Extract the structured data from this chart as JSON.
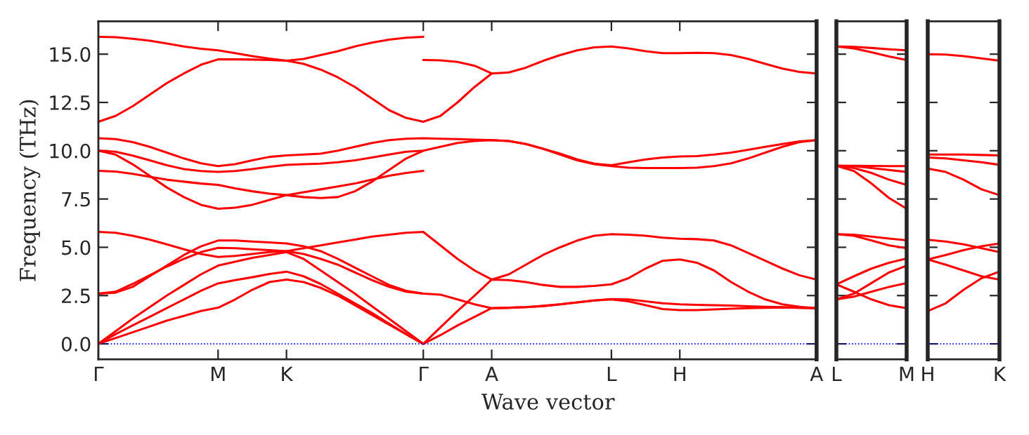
{
  "chart_data": [
    {
      "type": "line",
      "xlabel": "Wave vector",
      "ylabel": "Frequency (THz)",
      "ylim": [
        -0.8,
        16.7
      ],
      "categories": [
        "Γ",
        null,
        null,
        null,
        null,
        null,
        null,
        "M",
        null,
        null,
        null,
        "K",
        null,
        null,
        null,
        null,
        null,
        null,
        null,
        "Γ",
        null,
        null,
        null,
        "A",
        null,
        null,
        null,
        null,
        null,
        null,
        "L",
        null,
        null,
        null,
        "H",
        null,
        null,
        null,
        null,
        null,
        null,
        null,
        "A"
      ],
      "yticks": [
        {
          "value": 0,
          "label": "0.0"
        },
        {
          "value": 2.5,
          "label": "2.5"
        },
        {
          "value": 5,
          "label": "5.0"
        },
        {
          "value": 7.5,
          "label": "7.5"
        },
        {
          "value": 10,
          "label": "10.0"
        },
        {
          "value": 12.5,
          "label": "12.5"
        },
        {
          "value": 15,
          "label": "15.0"
        }
      ],
      "ref_lines": [
        {
          "axis": "y",
          "value": 0,
          "color": "#0000ff",
          "line_style": "dotted"
        }
      ],
      "series": [
        {
          "color": "#ff0000",
          "values": [
            0,
            0.3,
            0.6,
            0.9,
            1.2,
            1.45,
            1.7,
            1.87,
            2.3,
            2.8,
            3.2,
            3.33,
            3.2,
            2.9,
            2.5,
            2.0,
            1.5,
            1.0,
            0.5,
            0,
            0.45,
            0.95,
            1.4,
            1.85,
            1.87,
            1.9,
            1.95,
            2.05,
            2.15,
            2.25,
            2.3,
            2.2,
            2.0,
            1.8,
            1.75,
            1.75,
            1.78,
            1.82,
            1.85,
            1.87,
            1.88,
            1.87,
            1.85
          ]
        },
        {
          "color": "#ff0000",
          "values": [
            0,
            0.5,
            0.95,
            1.4,
            1.85,
            2.3,
            2.75,
            3.13,
            3.3,
            3.45,
            3.62,
            3.74,
            3.5,
            3.1,
            2.6,
            2.1,
            1.6,
            1.05,
            0.5,
            0,
            0.85,
            1.7,
            2.5,
            3.33,
            3.3,
            3.2,
            3.05,
            2.95,
            2.95,
            3.0,
            3.08,
            3.4,
            3.9,
            4.3,
            4.37,
            4.2,
            3.8,
            3.2,
            2.7,
            2.3,
            2.05,
            1.92,
            1.85
          ]
        },
        {
          "color": "#ff0000",
          "values": [
            0,
            0.65,
            1.3,
            1.9,
            2.5,
            3.05,
            3.6,
            4.05,
            4.25,
            4.45,
            4.6,
            4.75,
            4.4,
            3.8,
            3.2,
            2.6,
            1.95,
            1.3,
            0.65,
            0,
            null,
            null,
            null,
            null,
            null,
            null,
            null,
            null,
            null,
            null,
            null,
            null,
            null,
            null,
            null,
            null,
            null,
            null,
            null,
            null,
            null,
            null,
            null
          ]
        },
        {
          "color": "#ff0000",
          "values": [
            2.6,
            2.7,
            3.1,
            3.55,
            4.0,
            4.4,
            4.75,
            4.97,
            4.95,
            4.9,
            4.85,
            4.8,
            4.65,
            4.4,
            4.1,
            3.7,
            3.3,
            2.95,
            2.7,
            2.6,
            2.55,
            2.3,
            2.05,
            1.85,
            1.87,
            1.9,
            1.97,
            2.05,
            2.15,
            2.25,
            2.32,
            2.3,
            2.2,
            2.1,
            2.05,
            2.02,
            2.0,
            1.98,
            1.95,
            1.92,
            1.9,
            1.87,
            1.85
          ]
        },
        {
          "color": "#ff0000",
          "values": [
            2.6,
            2.65,
            2.95,
            3.5,
            4.05,
            4.6,
            5.05,
            5.35,
            5.35,
            5.3,
            5.25,
            5.2,
            5.05,
            4.8,
            4.4,
            3.95,
            3.5,
            3.05,
            2.75,
            2.6,
            null,
            null,
            null,
            null,
            null,
            null,
            null,
            null,
            null,
            null,
            null,
            null,
            null,
            null,
            null,
            null,
            null,
            null,
            null,
            null,
            null,
            null,
            null
          ]
        },
        {
          "color": "#ff0000",
          "values": [
            5.8,
            5.75,
            5.6,
            5.4,
            5.15,
            4.9,
            4.65,
            4.5,
            4.55,
            4.65,
            4.75,
            4.8,
            4.95,
            5.1,
            5.25,
            5.4,
            5.55,
            5.65,
            5.75,
            5.8,
            5.1,
            4.4,
            3.8,
            3.33,
            3.6,
            4.1,
            4.6,
            5.0,
            5.35,
            5.6,
            5.68,
            5.65,
            5.6,
            5.5,
            5.44,
            5.42,
            5.35,
            5.1,
            4.7,
            4.3,
            3.9,
            3.55,
            3.33
          ]
        },
        {
          "color": "#ff0000",
          "values": [
            8.96,
            8.92,
            8.8,
            8.65,
            8.5,
            8.4,
            8.3,
            8.23,
            8.05,
            7.9,
            7.78,
            7.7,
            7.6,
            7.55,
            7.6,
            7.9,
            8.4,
            9.0,
            9.6,
            10.0,
            null,
            null,
            null,
            null,
            null,
            null,
            null,
            null,
            null,
            null,
            null,
            null,
            null,
            null,
            null,
            null,
            null,
            null,
            null,
            null,
            null,
            null,
            null
          ]
        },
        {
          "color": "#ff0000",
          "values": [
            10.0,
            9.8,
            9.3,
            8.7,
            8.1,
            7.6,
            7.2,
            7.0,
            7.05,
            7.2,
            7.45,
            7.7,
            7.85,
            8.0,
            8.15,
            8.3,
            8.5,
            8.7,
            8.85,
            8.96,
            null,
            null,
            null,
            null,
            null,
            null,
            null,
            null,
            null,
            null,
            null,
            null,
            null,
            null,
            null,
            null,
            null,
            null,
            null,
            null,
            null,
            null,
            null
          ]
        },
        {
          "color": "#ff0000",
          "values": [
            10.0,
            9.95,
            9.75,
            9.5,
            9.25,
            9.05,
            8.95,
            8.9,
            8.95,
            9.05,
            9.17,
            9.27,
            9.3,
            9.33,
            9.4,
            9.5,
            9.65,
            9.8,
            9.95,
            10.0,
            10.2,
            10.4,
            10.5,
            10.55,
            10.5,
            10.35,
            10.1,
            9.8,
            9.5,
            9.3,
            9.2,
            9.12,
            9.1,
            9.1,
            9.1,
            9.12,
            9.2,
            9.35,
            9.6,
            9.9,
            10.2,
            10.45,
            10.55
          ]
        },
        {
          "color": "#ff0000",
          "values": [
            10.65,
            10.6,
            10.45,
            10.2,
            9.9,
            9.6,
            9.35,
            9.2,
            9.3,
            9.5,
            9.68,
            9.76,
            9.8,
            9.85,
            10.0,
            10.2,
            10.4,
            10.55,
            10.62,
            10.65,
            10.62,
            10.6,
            10.57,
            10.55,
            10.5,
            10.35,
            10.1,
            9.85,
            9.55,
            9.33,
            9.25,
            9.4,
            9.55,
            9.65,
            9.7,
            9.72,
            9.8,
            9.9,
            10.05,
            10.2,
            10.35,
            10.48,
            10.55
          ]
        },
        {
          "color": "#ff0000",
          "values": [
            11.5,
            11.8,
            12.3,
            12.9,
            13.5,
            14.0,
            14.45,
            14.73,
            14.73,
            14.72,
            14.7,
            14.66,
            14.5,
            14.2,
            13.8,
            13.3,
            12.7,
            12.1,
            11.7,
            11.5,
            11.8,
            12.5,
            13.3,
            14.0,
            14.05,
            14.3,
            14.65,
            14.95,
            15.2,
            15.35,
            15.4,
            15.3,
            15.15,
            15.05,
            15.05,
            15.07,
            15.05,
            14.95,
            14.75,
            14.5,
            14.25,
            14.08,
            14.0
          ]
        },
        {
          "color": "#ff0000",
          "values": [
            15.9,
            15.88,
            15.8,
            15.7,
            15.55,
            15.4,
            15.28,
            15.2,
            15.05,
            14.9,
            14.77,
            14.66,
            14.75,
            14.95,
            15.15,
            15.4,
            15.6,
            15.75,
            15.85,
            15.9,
            null,
            null,
            null,
            null,
            null,
            null,
            null,
            null,
            null,
            null,
            null,
            null,
            null,
            null,
            null,
            null,
            null,
            null,
            null,
            null,
            null,
            null,
            null
          ]
        },
        {
          "color": "#ff0000",
          "values": [
            null,
            null,
            null,
            null,
            null,
            null,
            null,
            null,
            null,
            null,
            null,
            null,
            null,
            null,
            null,
            null,
            null,
            null,
            null,
            14.7,
            14.68,
            14.6,
            14.4,
            14.0,
            null,
            null,
            null,
            null,
            null,
            null,
            null,
            null,
            null,
            null,
            null,
            null,
            null,
            null,
            null,
            null,
            null,
            null,
            null
          ]
        }
      ]
    },
    {
      "type": "line",
      "ylim": [
        -0.8,
        16.7
      ],
      "tick_labels": "x",
      "categories": [
        "L",
        null,
        null,
        null,
        "M"
      ],
      "yticks": [
        {
          "value": 0,
          "label": null
        },
        {
          "value": 2.5,
          "label": null
        },
        {
          "value": 5,
          "label": null
        },
        {
          "value": 7.5,
          "label": null
        },
        {
          "value": 10,
          "label": null
        },
        {
          "value": 12.5,
          "label": null
        },
        {
          "value": 15,
          "label": null
        }
      ],
      "ref_lines": [
        {
          "axis": "y",
          "value": 0,
          "color": "#0000ff",
          "line_style": "dotted"
        }
      ],
      "series": [
        {
          "color": "#ff0000",
          "values": [
            15.4,
            15.38,
            15.32,
            15.25,
            15.2
          ]
        },
        {
          "color": "#ff0000",
          "values": [
            15.4,
            15.3,
            15.1,
            14.88,
            14.7
          ]
        },
        {
          "color": "#ff0000",
          "values": [
            9.22,
            9.22,
            9.21,
            9.2,
            9.2
          ]
        },
        {
          "color": "#ff0000",
          "values": [
            9.22,
            9.2,
            9.1,
            9.0,
            8.9
          ]
        },
        {
          "color": "#ff0000",
          "values": [
            9.22,
            9.1,
            8.85,
            8.5,
            8.23
          ]
        },
        {
          "color": "#ff0000",
          "values": [
            9.22,
            8.95,
            8.3,
            7.55,
            7.0
          ]
        },
        {
          "color": "#ff0000",
          "values": [
            5.68,
            5.65,
            5.55,
            5.45,
            5.36
          ]
        },
        {
          "color": "#ff0000",
          "values": [
            5.68,
            5.6,
            5.35,
            5.1,
            4.95
          ]
        },
        {
          "color": "#ff0000",
          "values": [
            3.08,
            3.5,
            3.9,
            4.2,
            4.42
          ]
        },
        {
          "color": "#ff0000",
          "values": [
            3.08,
            2.7,
            2.3,
            2.0,
            1.85
          ]
        },
        {
          "color": "#ff0000",
          "values": [
            2.3,
            2.6,
            3.15,
            3.7,
            4.05
          ]
        },
        {
          "color": "#ff0000",
          "values": [
            2.3,
            2.45,
            2.7,
            2.95,
            3.15
          ]
        }
      ]
    },
    {
      "type": "line",
      "ylim": [
        -0.8,
        16.7
      ],
      "tick_labels": "x",
      "categories": [
        "H",
        null,
        null,
        null,
        "K"
      ],
      "yticks": [
        {
          "value": 0,
          "label": null
        },
        {
          "value": 2.5,
          "label": null
        },
        {
          "value": 5,
          "label": null
        },
        {
          "value": 7.5,
          "label": null
        },
        {
          "value": 10,
          "label": null
        },
        {
          "value": 12.5,
          "label": null
        },
        {
          "value": 15,
          "label": null
        }
      ],
      "ref_lines": [
        {
          "axis": "y",
          "value": 0,
          "color": "#0000ff",
          "line_style": "dotted"
        }
      ],
      "series": [
        {
          "color": "#ff0000",
          "values": [
            15.0,
            14.98,
            14.9,
            14.78,
            14.66
          ]
        },
        {
          "color": "#ff0000",
          "values": [
            9.8,
            9.8,
            9.8,
            9.78,
            9.76
          ]
        },
        {
          "color": "#ff0000",
          "values": [
            9.65,
            9.6,
            9.5,
            9.4,
            9.27
          ]
        },
        {
          "color": "#ff0000",
          "values": [
            9.08,
            8.9,
            8.5,
            8.0,
            7.7
          ]
        },
        {
          "color": "#ff0000",
          "values": [
            5.39,
            5.3,
            5.15,
            4.95,
            4.75
          ]
        },
        {
          "color": "#ff0000",
          "values": [
            4.37,
            4.6,
            4.85,
            5.05,
            5.2
          ]
        },
        {
          "color": "#ff0000",
          "values": [
            4.37,
            4.1,
            3.8,
            3.5,
            3.33
          ]
        },
        {
          "color": "#ff0000",
          "values": [
            1.7,
            2.1,
            2.8,
            3.4,
            3.74
          ]
        }
      ]
    }
  ]
}
